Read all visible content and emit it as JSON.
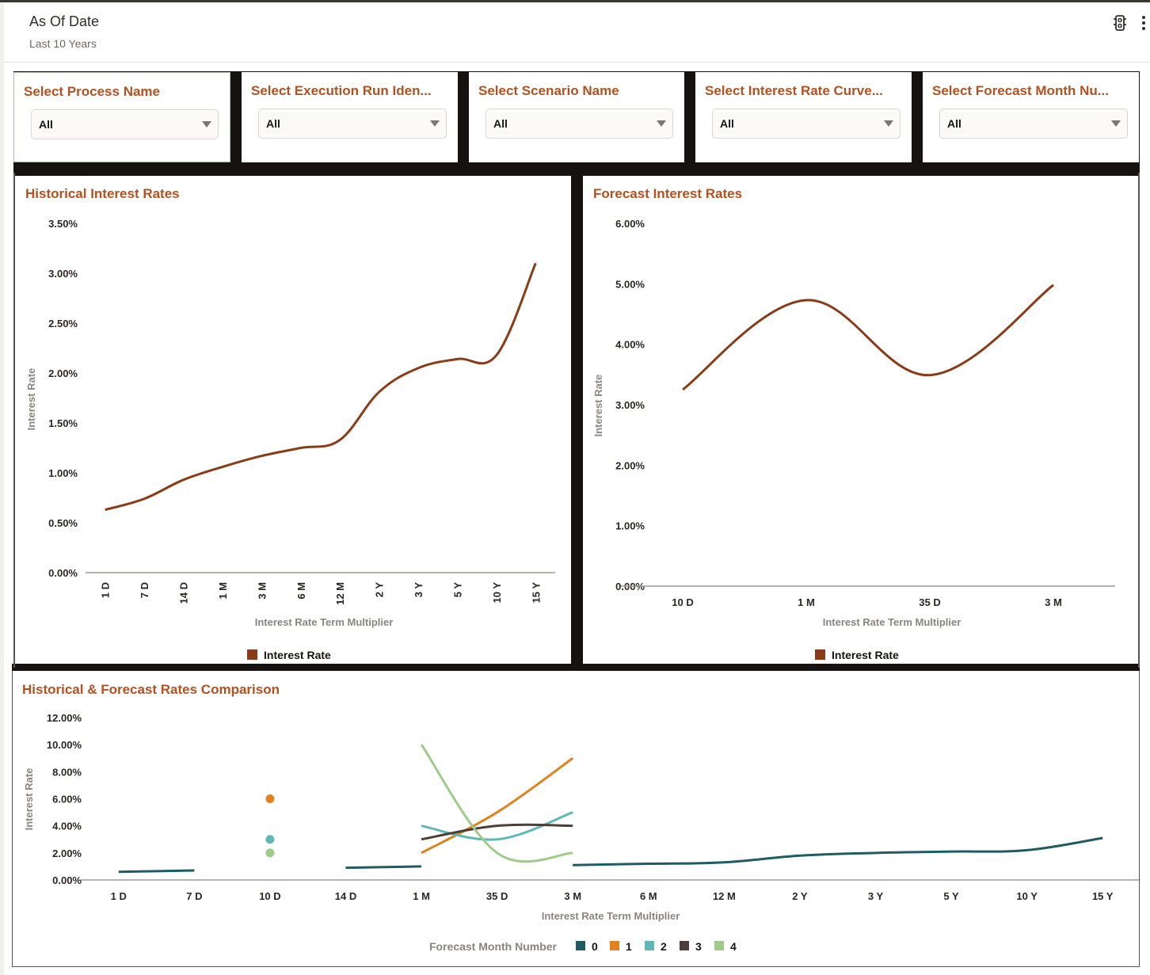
{
  "header": {
    "title": "As Of Date",
    "subtitle": "Last 10 Years",
    "icons": [
      "traffic-light-icon",
      "more-vertical-icon"
    ]
  },
  "filters": [
    {
      "label": "Select Process Name",
      "value": "All"
    },
    {
      "label": "Select Execution Run Iden...",
      "value": "All"
    },
    {
      "label": "Select Scenario Name",
      "value": "All"
    },
    {
      "label": "Select Interest Rate Curve...",
      "value": "All"
    },
    {
      "label": "Select Forecast Month Nu...",
      "value": "All"
    }
  ],
  "colors": {
    "accent": "#b4511f",
    "interest_rate": "#8a3b17",
    "series0": "#1f5b63",
    "series1": "#e0821e",
    "series2": "#5fb8b6",
    "series3": "#4b3f37",
    "series4": "#9fcb8a"
  },
  "chart_data": [
    {
      "id": "historical",
      "type": "line",
      "title": "Historical Interest Rates",
      "xlabel": "Interest Rate Term Multiplier",
      "ylabel": "Interest Rate",
      "categories": [
        "1 D",
        "7 D",
        "14 D",
        "1 M",
        "3 M",
        "6 M",
        "12 M",
        "2 Y",
        "3 Y",
        "5 Y",
        "10 Y",
        "15 Y"
      ],
      "series": [
        {
          "name": "Interest Rate",
          "values": [
            0.63,
            0.74,
            0.93,
            1.06,
            1.17,
            1.25,
            1.33,
            1.81,
            2.05,
            2.14,
            2.18,
            3.1
          ]
        }
      ],
      "ylim": [
        0,
        3.5
      ],
      "yticks": [
        "0.00%",
        "0.50%",
        "1.00%",
        "1.50%",
        "2.00%",
        "2.50%",
        "3.00%",
        "3.50%"
      ],
      "grid": false,
      "legend": "bottom",
      "x_tick_rotation": "vertical"
    },
    {
      "id": "forecast",
      "type": "line",
      "title": "Forecast Interest Rates",
      "xlabel": "Interest Rate Term Multiplier",
      "ylabel": "Interest Rate",
      "categories": [
        "10 D",
        "1 M",
        "35 D",
        "3 M"
      ],
      "series": [
        {
          "name": "Interest Rate",
          "values": [
            3.25,
            4.73,
            3.49,
            4.98
          ]
        }
      ],
      "ylim": [
        0,
        6
      ],
      "yticks": [
        "0.00%",
        "1.00%",
        "2.00%",
        "3.00%",
        "4.00%",
        "5.00%",
        "6.00%"
      ],
      "grid": false,
      "legend": "bottom"
    },
    {
      "id": "comparison",
      "type": "line",
      "title": "Historical & Forecast Rates Comparison",
      "xlabel": "Interest Rate Term Multiplier",
      "ylabel": "Interest Rate",
      "categories": [
        "1 D",
        "7 D",
        "10 D",
        "14 D",
        "1 M",
        "35 D",
        "3 M",
        "6 M",
        "12 M",
        "2 Y",
        "3 Y",
        "5 Y",
        "10 Y",
        "15 Y"
      ],
      "legend_title": "Forecast Month Number",
      "series": [
        {
          "name": "0",
          "values": [
            0.6,
            0.7,
            null,
            0.9,
            1.0,
            null,
            1.1,
            1.2,
            1.3,
            1.8,
            2.0,
            2.1,
            2.2,
            3.1
          ]
        },
        {
          "name": "1",
          "values": [
            null,
            null,
            6.0,
            null,
            2.0,
            5.0,
            9.0,
            null,
            null,
            null,
            null,
            null,
            null,
            null
          ]
        },
        {
          "name": "2",
          "values": [
            null,
            null,
            3.0,
            null,
            4.0,
            3.0,
            5.0,
            null,
            null,
            null,
            null,
            null,
            null,
            null
          ]
        },
        {
          "name": "3",
          "values": [
            null,
            null,
            null,
            null,
            3.0,
            4.0,
            4.0,
            null,
            null,
            null,
            null,
            null,
            null,
            null
          ]
        },
        {
          "name": "4",
          "values": [
            null,
            null,
            2.0,
            null,
            10.0,
            2.0,
            2.0,
            null,
            null,
            null,
            null,
            null,
            null,
            null
          ]
        }
      ],
      "ylim": [
        0,
        12
      ],
      "yticks": [
        "0.00%",
        "2.00%",
        "4.00%",
        "6.00%",
        "8.00%",
        "10.00%",
        "12.00%"
      ],
      "grid": false,
      "legend": "bottom"
    }
  ]
}
